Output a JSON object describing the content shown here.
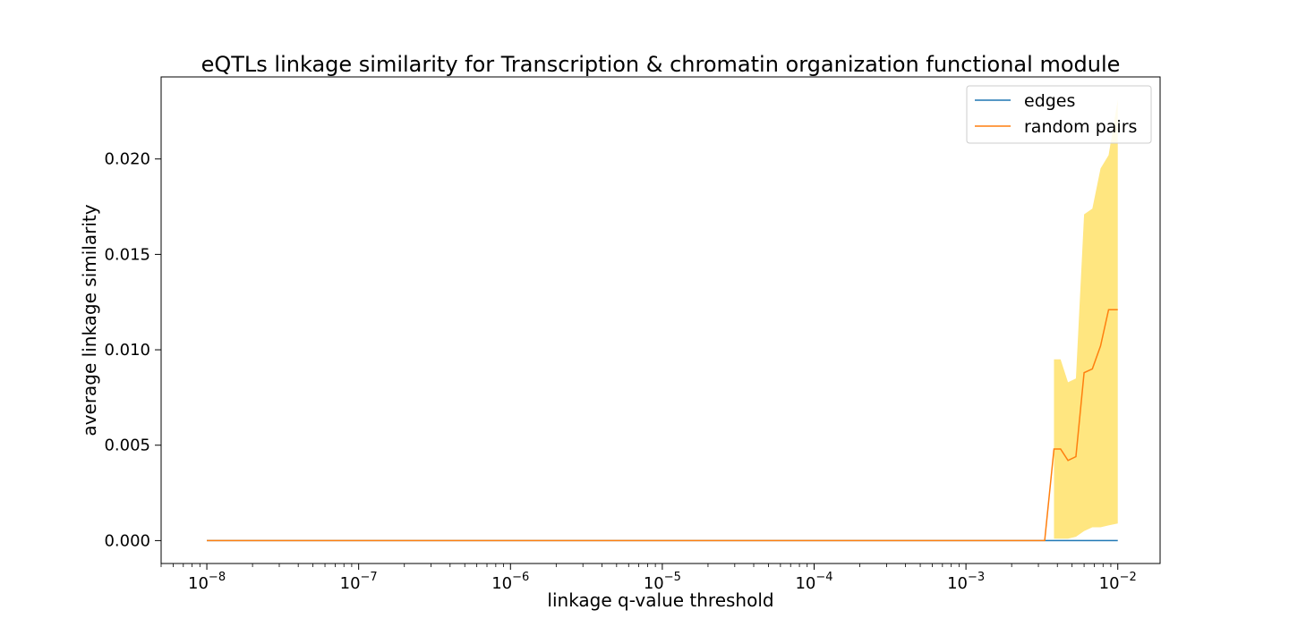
{
  "chart_data": {
    "type": "line",
    "title": "eQTLs linkage similarity for Transcription & chromatin organization functional module",
    "xlabel": "linkage q-value threshold",
    "ylabel": "average linkage similarity",
    "xscale": "log",
    "xlim": [
      5e-09,
      0.019
    ],
    "ylim": [
      -0.0012,
      0.0243
    ],
    "x_ticks": [
      {
        "value": 1e-08,
        "base": "10",
        "exp": "−8"
      },
      {
        "value": 1e-07,
        "base": "10",
        "exp": "−7"
      },
      {
        "value": 1e-06,
        "base": "10",
        "exp": "−6"
      },
      {
        "value": 1e-05,
        "base": "10",
        "exp": "−5"
      },
      {
        "value": 0.0001,
        "base": "10",
        "exp": "−4"
      },
      {
        "value": 0.001,
        "base": "10",
        "exp": "−3"
      },
      {
        "value": 0.01,
        "base": "10",
        "exp": "−2"
      }
    ],
    "y_ticks": [
      {
        "value": 0.0,
        "label": "0.000"
      },
      {
        "value": 0.005,
        "label": "0.005"
      },
      {
        "value": 0.01,
        "label": "0.010"
      },
      {
        "value": 0.015,
        "label": "0.015"
      },
      {
        "value": 0.02,
        "label": "0.020"
      }
    ],
    "grid": false,
    "legend_position": "top-right",
    "series": [
      {
        "name": "edges",
        "color": "#1f77b4",
        "x": [
          1e-08,
          0.001,
          0.0033,
          0.0038,
          0.0045,
          0.0052,
          0.006,
          0.0068,
          0.0077,
          0.0087,
          0.01
        ],
        "y": [
          0,
          0,
          0,
          0,
          0,
          0,
          0,
          0,
          0,
          0,
          0
        ]
      },
      {
        "name": "random pairs",
        "color": "#ff7f0e",
        "x": [
          1e-08,
          0.001,
          0.0033,
          0.0038,
          0.0042,
          0.0047,
          0.0053,
          0.006,
          0.0068,
          0.0077,
          0.0087,
          0.01
        ],
        "y": [
          0,
          0,
          0,
          0.0048,
          0.0048,
          0.0042,
          0.0044,
          0.0088,
          0.009,
          0.0102,
          0.0121,
          0.0121
        ]
      }
    ],
    "band": {
      "color": "#ffe680",
      "x": [
        0.0038,
        0.0042,
        0.0047,
        0.0053,
        0.006,
        0.0068,
        0.0077,
        0.0087,
        0.01
      ],
      "lower": [
        0.0001,
        0.0001,
        0.0001,
        0.0002,
        0.0005,
        0.0007,
        0.0007,
        0.0008,
        0.0009
      ],
      "upper": [
        0.0095,
        0.0095,
        0.0083,
        0.0085,
        0.0171,
        0.0174,
        0.0195,
        0.0202,
        0.0231
      ]
    }
  }
}
